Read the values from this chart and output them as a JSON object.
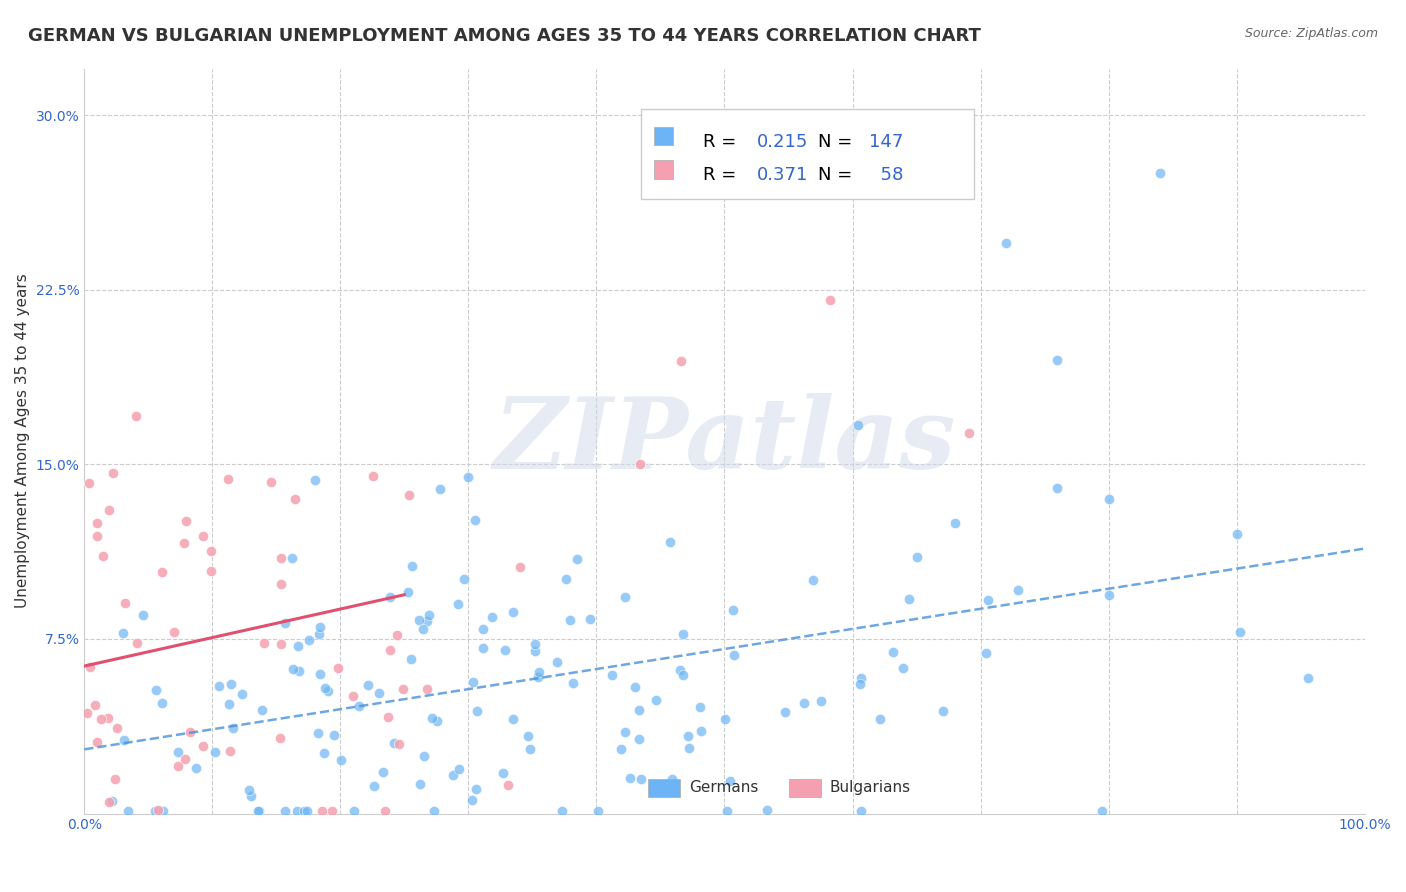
{
  "title": "GERMAN VS BULGARIAN UNEMPLOYMENT AMONG AGES 35 TO 44 YEARS CORRELATION CHART",
  "source": "Source: ZipAtlas.com",
  "ylabel": "Unemployment Among Ages 35 to 44 years",
  "xlim": [
    0,
    1.0
  ],
  "ylim": [
    0,
    0.32
  ],
  "xticks": [
    0.0,
    0.1,
    0.2,
    0.3,
    0.4,
    0.5,
    0.6,
    0.7,
    0.8,
    0.9,
    1.0
  ],
  "xticklabels": [
    "0.0%",
    "",
    "",
    "",
    "",
    "",
    "",
    "",
    "",
    "",
    "100.0%"
  ],
  "yticks": [
    0.0,
    0.075,
    0.15,
    0.225,
    0.3
  ],
  "yticklabels": [
    "",
    "7.5%",
    "15.0%",
    "22.5%",
    "30.0%"
  ],
  "german_R": 0.215,
  "german_N": 147,
  "bulgarian_R": 0.371,
  "bulgarian_N": 58,
  "german_color": "#6cb4f5",
  "bulgarian_color": "#f5a0b0",
  "german_line_color": "#4a90d9",
  "bulgarian_line_color": "#e05070",
  "background_color": "#ffffff",
  "grid_color": "#cccccc",
  "watermark_text": "ZIPatlas",
  "watermark_color": "#d0d8e8",
  "title_fontsize": 13,
  "axis_label_fontsize": 11,
  "tick_fontsize": 10,
  "legend_fontsize": 13,
  "seed_german": 42,
  "seed_bulgarian": 99
}
